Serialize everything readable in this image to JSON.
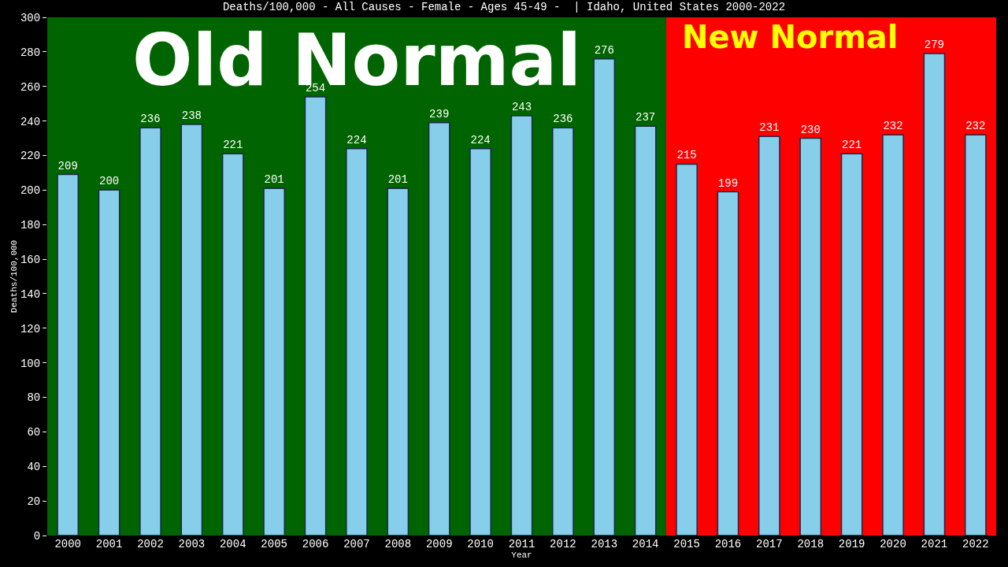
{
  "chart_data": {
    "type": "bar",
    "title": "Deaths/100,000 - All Causes - Female - Ages 45-49 -  | Idaho, United States 2000-2022",
    "xlabel": "Year",
    "ylabel": "Deaths/100,000",
    "categories": [
      "2000",
      "2001",
      "2002",
      "2003",
      "2004",
      "2005",
      "2006",
      "2007",
      "2008",
      "2009",
      "2010",
      "2011",
      "2012",
      "2013",
      "2014",
      "2015",
      "2016",
      "2017",
      "2018",
      "2019",
      "2020",
      "2021",
      "2022"
    ],
    "values": [
      209,
      200,
      236,
      238,
      221,
      201,
      254,
      224,
      201,
      239,
      224,
      243,
      236,
      276,
      237,
      215,
      199,
      231,
      230,
      221,
      232,
      279,
      232
    ],
    "color": "#87ceeb",
    "data_labels": true,
    "ylim": [
      0,
      300
    ],
    "yticks": [
      0,
      20,
      40,
      60,
      80,
      100,
      120,
      140,
      160,
      180,
      200,
      220,
      240,
      260,
      280,
      300
    ],
    "grid": false,
    "legend": false,
    "bands": [
      {
        "axis": "x",
        "from": "2000",
        "to": "2014",
        "label": "Old Normal",
        "color": "#006400"
      },
      {
        "axis": "x",
        "from": "2015",
        "to": "2022",
        "label": "New Normal",
        "color": "#ff0000"
      }
    ]
  }
}
